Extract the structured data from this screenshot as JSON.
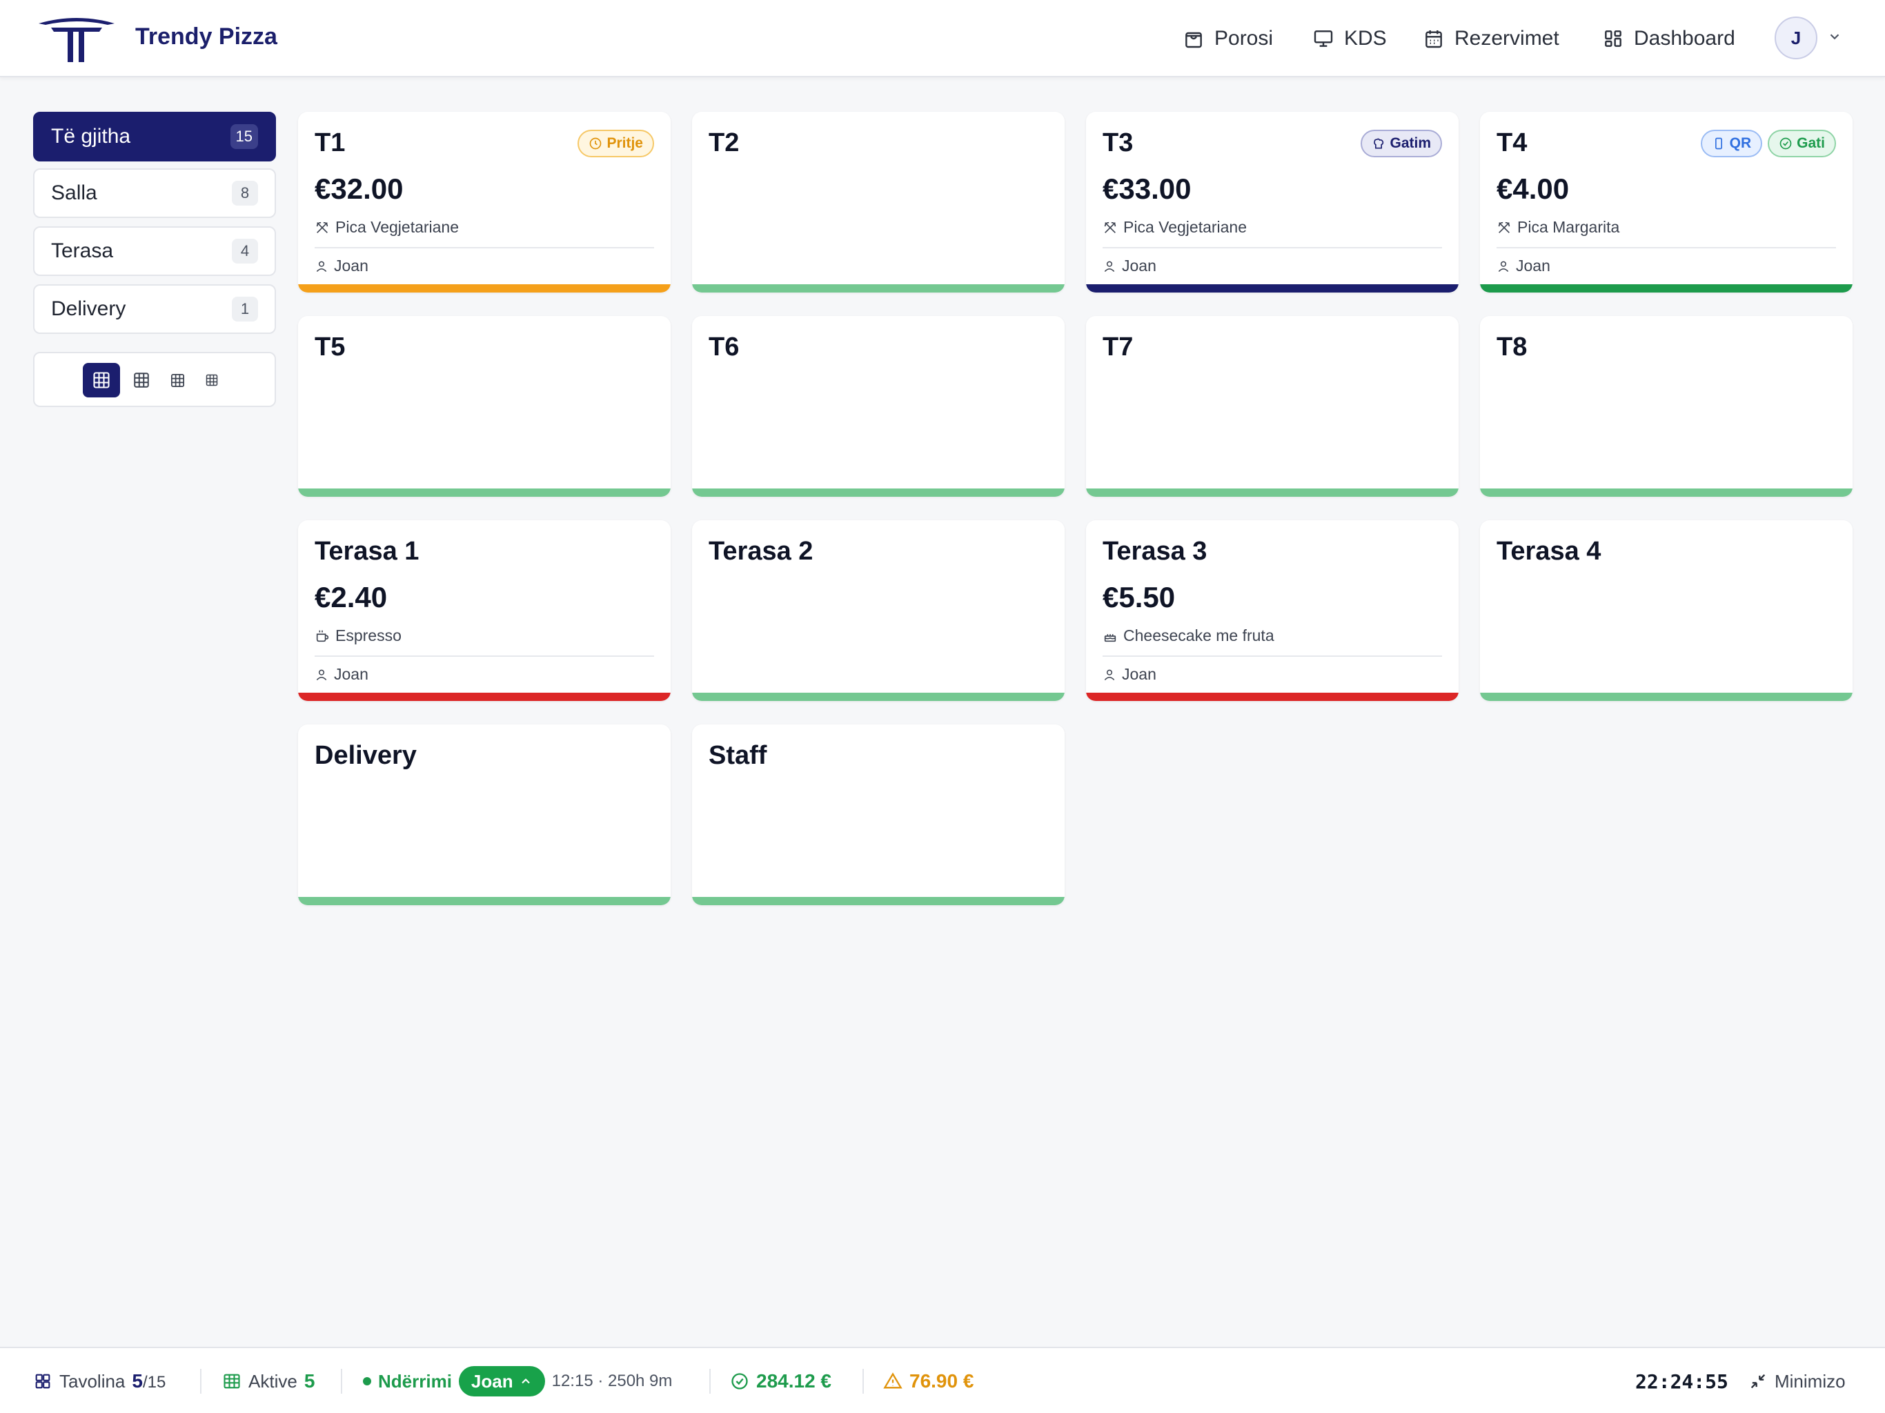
{
  "header": {
    "brand": "Trendy Pizza",
    "nav": [
      {
        "label": "Porosi",
        "icon": "shopping-bag-icon"
      },
      {
        "label": "KDS",
        "icon": "monitor-icon"
      },
      {
        "label": "Rezervimet",
        "icon": "calendar-icon"
      },
      {
        "label": "Dashboard",
        "icon": "dashboard-grid-icon"
      }
    ],
    "avatar_initial": "J"
  },
  "sidebar": {
    "filters": [
      {
        "label": "Të gjitha",
        "count": "15",
        "active": true
      },
      {
        "label": "Salla",
        "count": "8",
        "active": false
      },
      {
        "label": "Terasa",
        "count": "4",
        "active": false
      },
      {
        "label": "Delivery",
        "count": "1",
        "active": false
      }
    ]
  },
  "tables": [
    {
      "name": "T1",
      "amount": "€32.00",
      "item": "Pica Vegjetariane",
      "item_icon": "utensils-icon",
      "waiter": "Joan",
      "badges": [
        {
          "label": "Pritje",
          "kind": "pritje"
        }
      ],
      "bar_color": "#f5a01a"
    },
    {
      "name": "T2",
      "bar_color": "#74c891"
    },
    {
      "name": "T3",
      "amount": "€33.00",
      "item": "Pica Vegjetariane",
      "item_icon": "utensils-icon",
      "waiter": "Joan",
      "badges": [
        {
          "label": "Gatim",
          "kind": "gatim"
        }
      ],
      "bar_color": "#1b1e6e"
    },
    {
      "name": "T4",
      "amount": "€4.00",
      "item": "Pica Margarita",
      "item_icon": "utensils-icon",
      "waiter": "Joan",
      "badges": [
        {
          "label": "QR",
          "kind": "qr"
        },
        {
          "label": "Gati",
          "kind": "gati"
        }
      ],
      "bar_color": "#1d9b4c"
    },
    {
      "name": "T5",
      "bar_color": "#74c891"
    },
    {
      "name": "T6",
      "bar_color": "#74c891"
    },
    {
      "name": "T7",
      "bar_color": "#74c891"
    },
    {
      "name": "T8",
      "bar_color": "#74c891"
    },
    {
      "name": "Terasa 1",
      "amount": "€2.40",
      "item": "Espresso",
      "item_icon": "coffee-cup-icon",
      "waiter": "Joan",
      "bar_color": "#dc2626"
    },
    {
      "name": "Terasa 2",
      "bar_color": "#74c891"
    },
    {
      "name": "Terasa 3",
      "amount": "€5.50",
      "item": "Cheesecake me fruta",
      "item_icon": "cake-icon",
      "waiter": "Joan",
      "bar_color": "#dc2626"
    },
    {
      "name": "Terasa 4",
      "bar_color": "#74c891"
    },
    {
      "name": "Delivery",
      "bar_color": "#74c891"
    },
    {
      "name": "Staff",
      "bar_color": "#74c891"
    }
  ],
  "footer": {
    "tables_label": "Tavolina",
    "tables_used": "5",
    "tables_total": "/15",
    "active_label": "Aktive",
    "active_count": "5",
    "shift_label": "Ndërrimi",
    "shift_user": "Joan",
    "shift_time": "12:15 · 250h 9m",
    "cash_total": "284.12 €",
    "pending_total": "76.90 €",
    "clock": "22:24:55",
    "minimize_label": "Minimizo"
  }
}
